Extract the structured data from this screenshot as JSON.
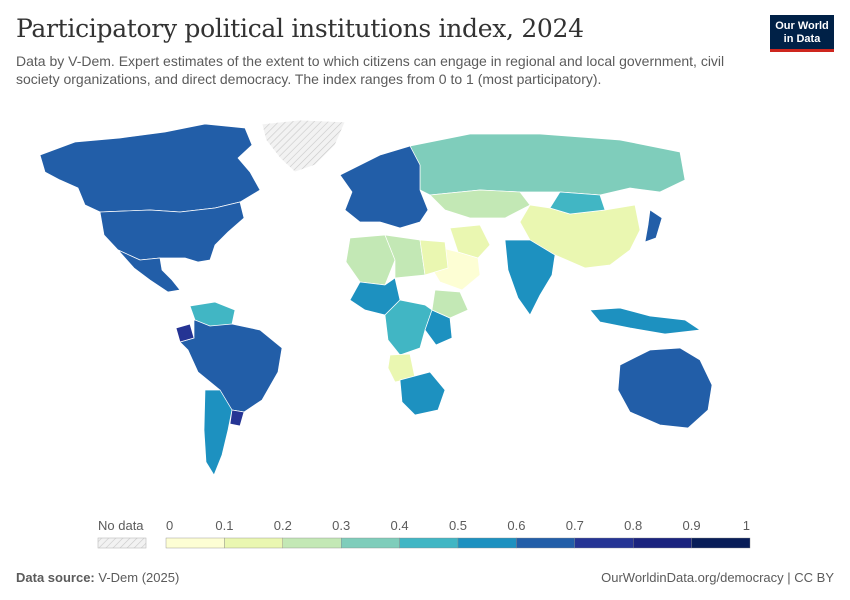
{
  "header": {
    "title": "Participatory political institutions index, 2024",
    "subtitle": "Data by V-Dem. Expert estimates of the extent to which citizens can engage in regional and local government, civil society organizations, and direct democracy. The index ranges from 0 to 1 (most participatory)."
  },
  "logo": {
    "line1": "Our World",
    "line2": "in Data"
  },
  "legend": {
    "no_data_label": "No data",
    "ticks": [
      "0",
      "0.1",
      "0.2",
      "0.3",
      "0.4",
      "0.5",
      "0.6",
      "0.7",
      "0.8",
      "0.9",
      "1"
    ],
    "bins": [
      {
        "from": 0.0,
        "to": 0.1,
        "color": "#fdfed4"
      },
      {
        "from": 0.1,
        "to": 0.2,
        "color": "#eaf7b1"
      },
      {
        "from": 0.2,
        "to": 0.3,
        "color": "#c3e8b5"
      },
      {
        "from": 0.3,
        "to": 0.4,
        "color": "#7fcdbb"
      },
      {
        "from": 0.4,
        "to": 0.5,
        "color": "#41b6c4"
      },
      {
        "from": 0.5,
        "to": 0.6,
        "color": "#1d91c0"
      },
      {
        "from": 0.6,
        "to": 0.7,
        "color": "#225ea8"
      },
      {
        "from": 0.7,
        "to": 0.8,
        "color": "#253494"
      },
      {
        "from": 0.8,
        "to": 0.9,
        "color": "#1a237e"
      },
      {
        "from": 0.9,
        "to": 1.0,
        "color": "#081d58"
      }
    ]
  },
  "footer": {
    "source_label": "Data source:",
    "source_value": "V-Dem (2025)",
    "credit": "OurWorldinData.org/democracy | CC BY"
  },
  "colors": {
    "no_data": "#e8e8e8",
    "border": "#ffffff"
  },
  "regions": [
    {
      "name": "Canada",
      "value": 0.66
    },
    {
      "name": "United States",
      "value": 0.65
    },
    {
      "name": "Mexico",
      "value": 0.64
    },
    {
      "name": "Greenland",
      "value": null
    },
    {
      "name": "Brazil",
      "value": 0.65
    },
    {
      "name": "Argentina",
      "value": 0.52
    },
    {
      "name": "Uruguay",
      "value": 0.78
    },
    {
      "name": "Ecuador",
      "value": 0.75
    },
    {
      "name": "Venezuela",
      "value": 0.45
    },
    {
      "name": "Russia",
      "value": 0.35
    },
    {
      "name": "Kazakhstan",
      "value": 0.25
    },
    {
      "name": "China",
      "value": 0.12
    },
    {
      "name": "India",
      "value": 0.58
    },
    {
      "name": "Saudi Arabia",
      "value": 0.03
    },
    {
      "name": "Iran",
      "value": 0.12
    },
    {
      "name": "Algeria",
      "value": 0.22
    },
    {
      "name": "Libya",
      "value": 0.22
    },
    {
      "name": "Egypt",
      "value": 0.15
    },
    {
      "name": "Nigeria",
      "value": 0.55
    },
    {
      "name": "DR Congo",
      "value": 0.42
    },
    {
      "name": "Angola",
      "value": 0.12
    },
    {
      "name": "South Africa",
      "value": 0.55
    },
    {
      "name": "Australia",
      "value": 0.66
    },
    {
      "name": "Indonesia",
      "value": 0.52
    },
    {
      "name": "Mongolia",
      "value": 0.45
    },
    {
      "name": "Europe",
      "value": 0.62
    },
    {
      "name": "Japan",
      "value": 0.62
    },
    {
      "name": "Kenya",
      "value": 0.55
    },
    {
      "name": "Ethiopia",
      "value": 0.25
    }
  ]
}
